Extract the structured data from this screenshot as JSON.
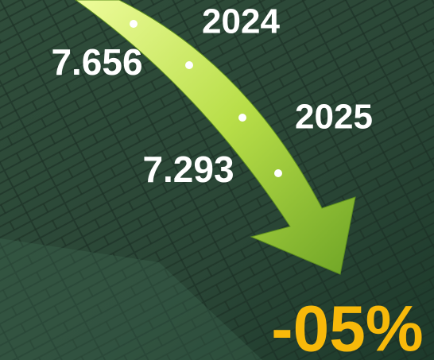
{
  "items": [
    {
      "year": "2024",
      "value": "7.656"
    },
    {
      "year": "2025",
      "value": "7.293"
    }
  ],
  "change": "-05%"
}
